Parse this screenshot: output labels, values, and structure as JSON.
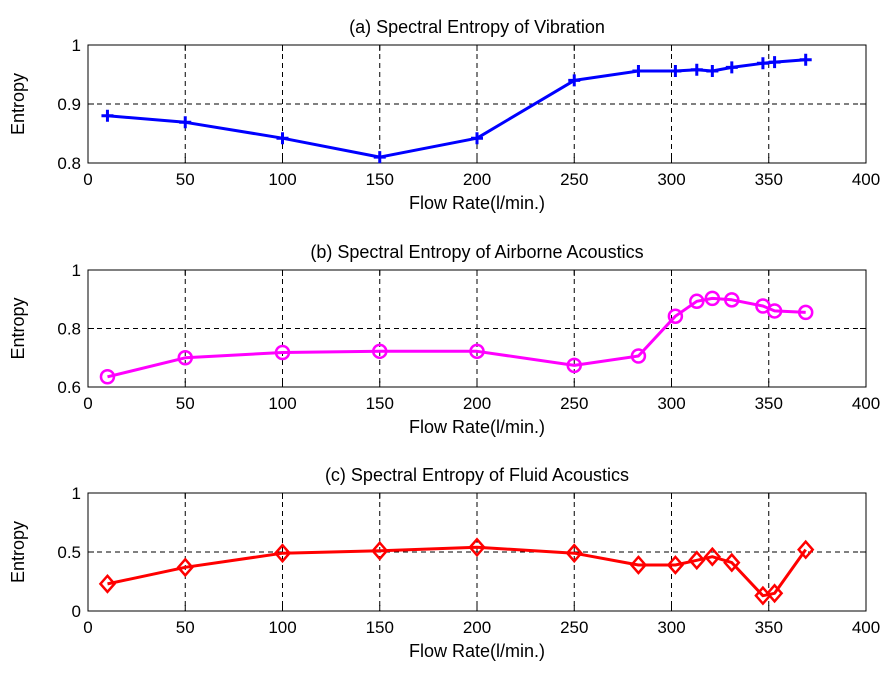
{
  "chart_data": [
    {
      "type": "line",
      "title": "(a) Spectral Entropy of Vibration",
      "xlabel": "Flow Rate(l/min.)",
      "ylabel": "Entropy",
      "xlim": [
        0,
        400
      ],
      "ylim": [
        0.8,
        1.0
      ],
      "xticks": [
        "0",
        "50",
        "100",
        "150",
        "200",
        "250",
        "300",
        "350",
        "400"
      ],
      "yticks": [
        "0.8",
        "0.9",
        "1"
      ],
      "grid": true,
      "marker": "plus",
      "color": "#0000ff",
      "series": [
        {
          "x": [
            10,
            50,
            100,
            150,
            200,
            250,
            283,
            302,
            313,
            321,
            331,
            347,
            353,
            369
          ],
          "values": [
            0.88,
            0.869,
            0.842,
            0.81,
            0.842,
            0.94,
            0.956,
            0.956,
            0.958,
            0.956,
            0.962,
            0.969,
            0.971,
            0.975
          ]
        }
      ]
    },
    {
      "type": "line",
      "title": "(b) Spectral Entropy of Airborne Acoustics",
      "xlabel": "Flow Rate(l/min.)",
      "ylabel": "Entropy",
      "xlim": [
        0,
        400
      ],
      "ylim": [
        0.6,
        1.0
      ],
      "xticks": [
        "0",
        "50",
        "100",
        "150",
        "200",
        "250",
        "300",
        "350",
        "400"
      ],
      "yticks": [
        "0.6",
        "0.8",
        "1"
      ],
      "grid": true,
      "marker": "circle",
      "color": "#ff00ff",
      "series": [
        {
          "x": [
            10,
            50,
            100,
            150,
            200,
            250,
            283,
            302,
            313,
            321,
            331,
            347,
            353,
            369
          ],
          "values": [
            0.635,
            0.7,
            0.718,
            0.722,
            0.722,
            0.674,
            0.706,
            0.842,
            0.893,
            0.903,
            0.898,
            0.877,
            0.86,
            0.855
          ]
        }
      ]
    },
    {
      "type": "line",
      "title": "(c) Spectral Entropy of Fluid Acoustics",
      "xlabel": "Flow Rate(l/min.)",
      "ylabel": "Entropy",
      "xlim": [
        0,
        400
      ],
      "ylim": [
        0,
        1.0
      ],
      "xticks": [
        "0",
        "50",
        "100",
        "150",
        "200",
        "250",
        "300",
        "350",
        "400"
      ],
      "yticks": [
        "0",
        "0.5",
        "1"
      ],
      "grid": true,
      "marker": "diamond",
      "color": "#ff0000",
      "series": [
        {
          "x": [
            10,
            50,
            100,
            150,
            200,
            250,
            283,
            302,
            313,
            321,
            331,
            347,
            353,
            369
          ],
          "values": [
            0.23,
            0.37,
            0.49,
            0.51,
            0.54,
            0.49,
            0.39,
            0.39,
            0.43,
            0.46,
            0.41,
            0.13,
            0.15,
            0.52
          ]
        }
      ]
    }
  ]
}
